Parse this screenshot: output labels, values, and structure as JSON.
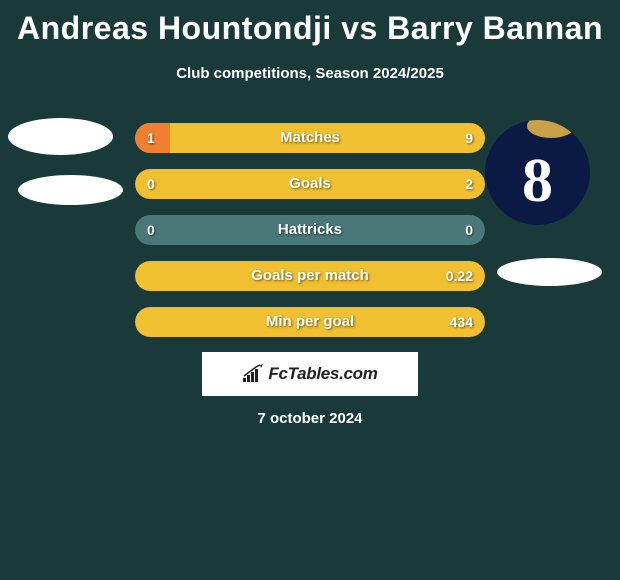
{
  "title": "Andreas Hountondji vs Barry Bannan",
  "subtitle": "Club competitions, Season 2024/2025",
  "date": "7 october 2024",
  "brand": "FcTables.com",
  "player_right_jersey_number": "8",
  "colors": {
    "background": "#1a3a3a",
    "bar_left": "#f08030",
    "bar_bg_default": "#4a7878",
    "bar_right_full": "#f0c030",
    "text_white": "#ffffff"
  },
  "stats": [
    {
      "label": "Matches",
      "left_value": "1",
      "right_value": "9",
      "left_pct": 10,
      "right_pct": 90,
      "left_color": "#f08030",
      "right_color": "#f0c030",
      "bg_color": "#f0c030"
    },
    {
      "label": "Goals",
      "left_value": "0",
      "right_value": "2",
      "left_pct": 0,
      "right_pct": 100,
      "left_color": "#f08030",
      "right_color": "#f0c030",
      "bg_color": "#f0c030"
    },
    {
      "label": "Hattricks",
      "left_value": "0",
      "right_value": "0",
      "left_pct": 0,
      "right_pct": 0,
      "left_color": "#f08030",
      "right_color": "#f0c030",
      "bg_color": "#4a7878"
    },
    {
      "label": "Goals per match",
      "left_value": "",
      "right_value": "0.22",
      "left_pct": 0,
      "right_pct": 100,
      "left_color": "#f08030",
      "right_color": "#f0c030",
      "bg_color": "#f0c030"
    },
    {
      "label": "Min per goal",
      "left_value": "",
      "right_value": "434",
      "left_pct": 0,
      "right_pct": 100,
      "left_color": "#f08030",
      "right_color": "#f0c030",
      "bg_color": "#f0c030"
    }
  ]
}
